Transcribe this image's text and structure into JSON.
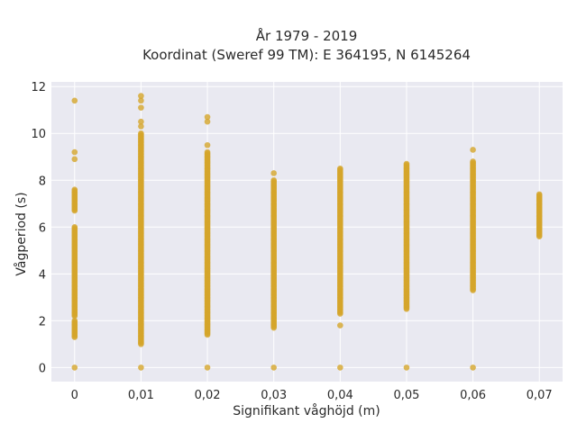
{
  "chart_data": {
    "type": "scatter",
    "title": "År 1979 - 2019",
    "subtitle": "Koordinat (Sweref 99 TM): E 364195, N 6145264",
    "xlabel": "Signifikant våghöjd (m)",
    "ylabel": "Vågperiod (s)",
    "xlim": [
      -0.0035,
      0.0735
    ],
    "ylim": [
      -0.6,
      12.2
    ],
    "x_ticks": [
      0,
      0.01,
      0.02,
      0.03,
      0.04,
      0.05,
      0.06,
      0.07
    ],
    "x_tick_labels": [
      "0",
      "0,01",
      "0,02",
      "0,03",
      "0,04",
      "0,05",
      "0,06",
      "0,07"
    ],
    "y_ticks": [
      0,
      2,
      4,
      6,
      8,
      10,
      12
    ],
    "y_tick_labels": [
      "0",
      "2",
      "4",
      "6",
      "8",
      "10",
      "12"
    ],
    "grid": true,
    "marker_color": "#D4A52B",
    "plot_background": "#E9E9F1",
    "series": [
      {
        "columns": [
          {
            "x": 0,
            "ranges": [
              [
                1.3,
                2.0
              ],
              [
                2.2,
                6.0
              ],
              [
                6.7,
                7.6
              ]
            ],
            "points": [
              0,
              8.9,
              9.2,
              11.4
            ]
          },
          {
            "x": 0.01,
            "ranges": [
              [
                1.0,
                10.0
              ]
            ],
            "points": [
              0,
              10.3,
              10.5,
              11.1,
              11.4,
              11.6
            ]
          },
          {
            "x": 0.02,
            "ranges": [
              [
                1.4,
                9.2
              ]
            ],
            "points": [
              0,
              9.5,
              10.5,
              10.7
            ]
          },
          {
            "x": 0.03,
            "ranges": [
              [
                1.7,
                8.0
              ]
            ],
            "points": [
              0,
              8.3
            ]
          },
          {
            "x": 0.04,
            "ranges": [
              [
                2.3,
                8.5
              ]
            ],
            "points": [
              0,
              1.8
            ]
          },
          {
            "x": 0.05,
            "ranges": [
              [
                2.5,
                8.7
              ]
            ],
            "points": [
              0
            ]
          },
          {
            "x": 0.06,
            "ranges": [
              [
                3.3,
                8.8
              ]
            ],
            "points": [
              0,
              9.3
            ]
          },
          {
            "x": 0.07,
            "ranges": [
              [
                5.6,
                7.4
              ]
            ],
            "points": []
          }
        ]
      }
    ]
  }
}
